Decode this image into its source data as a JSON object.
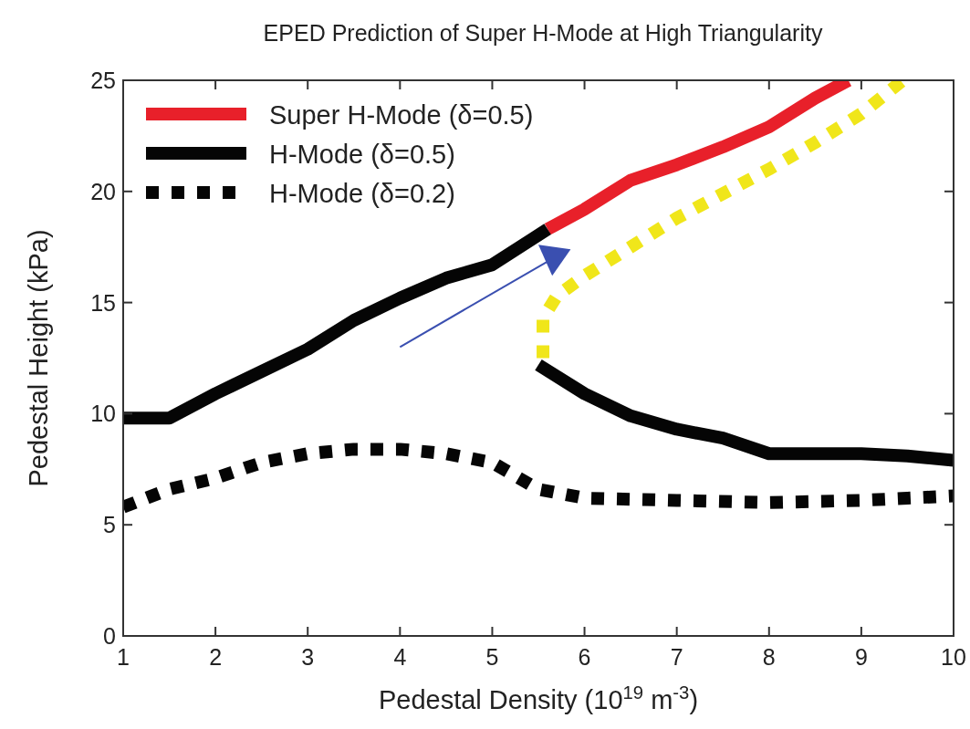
{
  "chart_data": {
    "type": "line",
    "title": "EPED Prediction of Super H-Mode at High Triangularity",
    "xlabel": "Pedestal Density (10$^{19}$ m$^{-3}$)",
    "ylabel": "Pedestal Height (kPa)",
    "xlim": [
      1,
      10
    ],
    "ylim": [
      0,
      25
    ],
    "xticks": [
      1,
      2,
      3,
      4,
      5,
      6,
      7,
      8,
      9,
      10
    ],
    "yticks": [
      0,
      5,
      10,
      15,
      20,
      25
    ],
    "legend": "top left",
    "grid": false,
    "series": [
      {
        "name": "Super H-Mode (δ=0.5)",
        "color": "#e8202a",
        "line_style": "solid",
        "x": [
          5.6,
          6,
          6.5,
          7,
          7.5,
          8,
          8.5,
          8.86
        ],
        "values": [
          18.3,
          19.2,
          20.5,
          21.2,
          22,
          22.9,
          24.2,
          25
        ]
      },
      {
        "name": "H-Mode (δ=0.5)",
        "color": "#050505",
        "line_style": "solid",
        "x": [
          1,
          1.5,
          2,
          2.5,
          3,
          3.5,
          4,
          4.5,
          5,
          5.6,
          5.55,
          5.5,
          6,
          6.5,
          7,
          7.5,
          8,
          9,
          9.5,
          10
        ],
        "values": [
          9.8,
          9.8,
          10.9,
          11.9,
          12.9,
          14.2,
          15.2,
          16.1,
          16.7,
          18.3,
          null,
          12.2,
          10.9,
          9.9,
          9.3,
          8.9,
          8.2,
          8.2,
          8.1,
          7.9
        ]
      },
      {
        "name": "H-Mode (δ=0.2)",
        "color": "#050505",
        "line_style": "dotted",
        "x": [
          1,
          1.5,
          2,
          2.5,
          3,
          3.5,
          4,
          4.5,
          5,
          5.5,
          6,
          7,
          8,
          9,
          9.5,
          10
        ],
        "values": [
          5.8,
          6.6,
          7.1,
          7.8,
          8.2,
          8.4,
          8.4,
          8.2,
          7.8,
          6.6,
          6.2,
          6.1,
          6.0,
          6.1,
          6.2,
          6.3
        ]
      },
      {
        "color": "#f0e61a",
        "line_style": "dotted",
        "x": [
          5.55,
          5.55,
          5.7,
          6,
          6.5,
          7,
          7.5,
          8,
          8.5,
          9,
          9.45
        ],
        "values": [
          12.5,
          14.3,
          15.3,
          16.2,
          17.5,
          18.8,
          19.9,
          21,
          22.2,
          23.5,
          25
        ]
      }
    ]
  }
}
